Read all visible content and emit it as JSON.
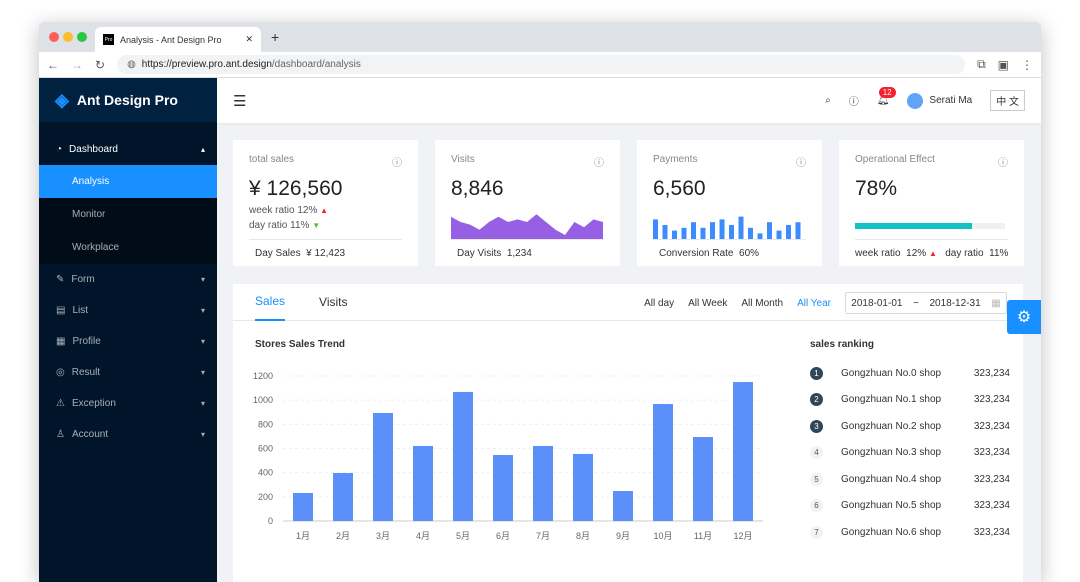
{
  "browser": {
    "tab_title": "Analysis - Ant Design Pro",
    "favicon": "Pro",
    "url_host": "https://preview.pro.ant.design",
    "url_path": "/dashboard/analysis"
  },
  "sidebar": {
    "brand": "Ant Design Pro",
    "items": [
      {
        "label": "Dashboard",
        "icon": "dashboard-icon",
        "expanded": true,
        "children": [
          {
            "label": "Analysis",
            "active": true
          },
          {
            "label": "Monitor"
          },
          {
            "label": "Workplace"
          }
        ]
      },
      {
        "label": "Form",
        "icon": "form-icon"
      },
      {
        "label": "List",
        "icon": "table-icon"
      },
      {
        "label": "Profile",
        "icon": "profile-icon"
      },
      {
        "label": "Result",
        "icon": "check-circle-icon"
      },
      {
        "label": "Exception",
        "icon": "warning-icon"
      },
      {
        "label": "Account",
        "icon": "user-icon"
      }
    ]
  },
  "header": {
    "notifications": "12",
    "user": "Serati Ma",
    "lang": "中 文"
  },
  "cards": [
    {
      "title": "total sales",
      "value": "¥ 126,560",
      "week_label": "week ratio",
      "week": "12%",
      "day_label": "day ratio",
      "day": "11%",
      "footer_label": "Day Sales",
      "footer_value": "¥ 12,423"
    },
    {
      "title": "Visits",
      "value": "8,846",
      "footer_label": "Day Visits",
      "footer_value": "1,234",
      "area": [
        7,
        5,
        4,
        2,
        5,
        7,
        5,
        6,
        5,
        8,
        5,
        2,
        0,
        5,
        3,
        6,
        5
      ]
    },
    {
      "title": "Payments",
      "value": "6,560",
      "footer_label": "Conversion Rate",
      "footer_value": "60%",
      "bars": [
        7,
        5,
        3,
        4,
        6,
        4,
        6,
        7,
        5,
        8,
        4,
        2,
        6,
        3,
        5,
        6
      ]
    },
    {
      "title": "Operational Effect",
      "value": "78%",
      "progress": 78,
      "week_label": "week ratio",
      "week": "12%",
      "day_label": "day ratio",
      "day": "11%"
    }
  ],
  "sales": {
    "tabs": [
      "Sales",
      "Visits"
    ],
    "ranges": [
      "All day",
      "All Week",
      "All Month",
      "All Year"
    ],
    "active_range": "All Year",
    "date_start": "2018-01-01",
    "date_sep": "~",
    "date_end": "2018-12-31",
    "ranking_title": "sales ranking",
    "ranking": [
      {
        "rank": "1",
        "name": "Gongzhuan No.0 shop",
        "value": "323,234"
      },
      {
        "rank": "2",
        "name": "Gongzhuan No.1 shop",
        "value": "323,234"
      },
      {
        "rank": "3",
        "name": "Gongzhuan No.2 shop",
        "value": "323,234"
      },
      {
        "rank": "4",
        "name": "Gongzhuan No.3 shop",
        "value": "323,234"
      },
      {
        "rank": "5",
        "name": "Gongzhuan No.4 shop",
        "value": "323,234"
      },
      {
        "rank": "6",
        "name": "Gongzhuan No.5 shop",
        "value": "323,234"
      },
      {
        "rank": "7",
        "name": "Gongzhuan No.6 shop",
        "value": "323,234"
      }
    ]
  },
  "chart_data": {
    "type": "bar",
    "title": "Stores Sales Trend",
    "categories": [
      "1月",
      "2月",
      "3月",
      "4月",
      "5月",
      "6月",
      "7月",
      "8月",
      "9月",
      "10月",
      "11月",
      "12月"
    ],
    "values": [
      232,
      397,
      894,
      621,
      1068,
      546,
      621,
      555,
      248,
      968,
      695,
      1150
    ],
    "ylim": [
      0,
      1200
    ],
    "yticks": [
      0,
      200,
      400,
      600,
      800,
      1000,
      1200
    ],
    "color": "#5b8ff9",
    "grid": true
  },
  "colors": {
    "primary": "#1890ff",
    "up": "#f5222d",
    "down": "#52c41a",
    "visits": "#975fe4",
    "payments": "#3b8cff",
    "progress": "#13c2c2"
  }
}
